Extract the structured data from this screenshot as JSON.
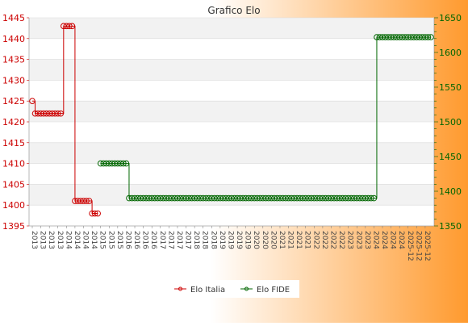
{
  "chart_data": {
    "type": "line",
    "title": "Grafico Elo",
    "background": {
      "from": "#ffffff",
      "to": "#ff9a2e"
    },
    "left_axis": {
      "ylim": [
        1395,
        1445
      ],
      "ticks": [
        1395,
        1400,
        1405,
        1410,
        1415,
        1420,
        1425,
        1430,
        1435,
        1440,
        1445
      ],
      "color": "#cc0000"
    },
    "right_axis": {
      "ylim": [
        1350,
        1650
      ],
      "ticks": [
        1350,
        1400,
        1450,
        1500,
        1550,
        1600,
        1650
      ],
      "color": "#006600"
    },
    "x_tick_labels_note": "dense overlapping date labels, rotated 90°",
    "x_labels_visible": [
      "2013",
      "2014",
      "2015",
      "2016",
      "2017",
      "2018",
      "2019",
      "2020",
      "2021",
      "2022",
      "2023",
      "2024",
      "2025-12"
    ],
    "legend": {
      "position": "bottom-center"
    },
    "series": [
      {
        "name": "Elo Italia",
        "axis": "left",
        "color": "#cc0000",
        "values": [
          1425,
          1422,
          1422,
          1422,
          1422,
          1422,
          1422,
          1422,
          1422,
          1422,
          1422,
          1443,
          1443,
          1443,
          1443,
          1401,
          1401,
          1401,
          1401,
          1401,
          1401,
          1398,
          1398,
          1398
        ]
      },
      {
        "name": "Elo FIDE",
        "axis": "right",
        "color": "#006600",
        "start_index": 24,
        "values": [
          1440,
          1440,
          1440,
          1440,
          1440,
          1440,
          1440,
          1440,
          1440,
          1440,
          1390,
          1390,
          1390,
          1390,
          1390,
          1390,
          1390,
          1390,
          1390,
          1390,
          1390,
          1390,
          1390,
          1390,
          1390,
          1390,
          1390,
          1390,
          1390,
          1390,
          1390,
          1390,
          1390,
          1390,
          1390,
          1390,
          1390,
          1390,
          1390,
          1390,
          1390,
          1390,
          1390,
          1390,
          1390,
          1390,
          1390,
          1390,
          1390,
          1390,
          1390,
          1390,
          1390,
          1390,
          1390,
          1390,
          1390,
          1390,
          1390,
          1390,
          1390,
          1390,
          1390,
          1390,
          1390,
          1390,
          1390,
          1390,
          1390,
          1390,
          1390,
          1390,
          1390,
          1390,
          1390,
          1390,
          1390,
          1390,
          1390,
          1390,
          1390,
          1390,
          1390,
          1390,
          1390,
          1390,
          1390,
          1390,
          1390,
          1390,
          1390,
          1390,
          1390,
          1390,
          1390,
          1390,
          1390,
          1622,
          1622,
          1622,
          1622,
          1622,
          1622,
          1622,
          1622,
          1622,
          1622,
          1622,
          1622,
          1622,
          1622,
          1622,
          1622,
          1622,
          1622,
          1622,
          1622
        ]
      }
    ]
  }
}
